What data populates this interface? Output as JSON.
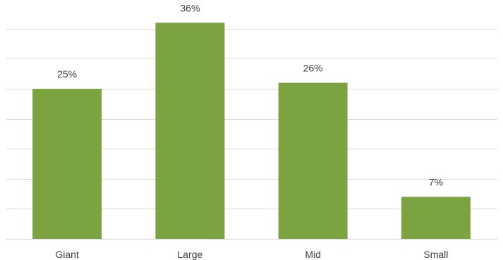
{
  "chart_data": {
    "type": "bar",
    "categories": [
      "Giant",
      "Large",
      "Mid",
      "Small"
    ],
    "values": [
      25,
      36,
      26,
      7
    ],
    "data_labels": [
      "25%",
      "36%",
      "26%",
      "7%"
    ],
    "ylim": [
      0,
      40
    ],
    "y_gridline_step": 5,
    "grid": true,
    "legend": "none",
    "colors": {
      "bar": "#7BA340",
      "grid": "#D9D9D9",
      "text": "#404040"
    }
  }
}
